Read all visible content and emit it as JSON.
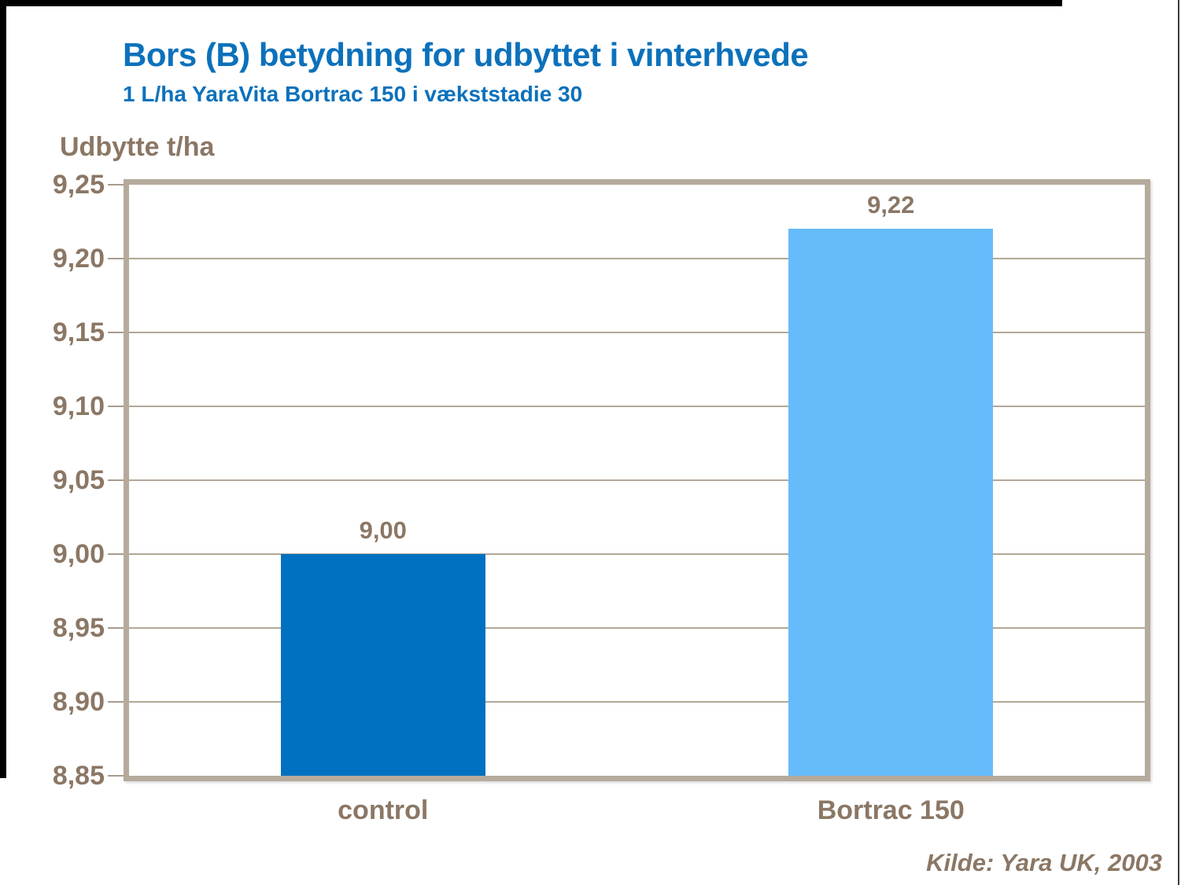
{
  "title": "Bors (B) betydning for udbyttet i vinterhvede",
  "subtitle": "1 L/ha YaraVita Bortrac 150 i vækststadie 30",
  "y_axis_title": "Udbytte t/ha",
  "source": "Kilde: Yara UK, 2003",
  "colors": {
    "title_blue": "#0c71bb",
    "text_brown": "#8b7765",
    "bar_control": "#0070c0",
    "bar_bortrac": "#66bbfa",
    "gridline": "#b3a797",
    "plot_frame": "#b5aa9c"
  },
  "chart_data": {
    "type": "bar",
    "title": "Bors (B) betydning for udbyttet i vinterhvede",
    "subtitle": "1 L/ha YaraVita Bortrac 150 i vækststadie 30",
    "xlabel": "",
    "ylabel": "Udbytte t/ha",
    "categories": [
      "control",
      "Bortrac 150"
    ],
    "values": [
      9.0,
      9.22
    ],
    "value_labels": [
      "9,00",
      "9,22"
    ],
    "bar_colors": [
      "#0070c0",
      "#66bbfa"
    ],
    "ylim": [
      8.85,
      9.25
    ],
    "ytick_step": 0.05,
    "yticks": [
      8.85,
      8.9,
      8.95,
      9.0,
      9.05,
      9.1,
      9.15,
      9.2,
      9.25
    ],
    "ytick_labels": [
      "8,85",
      "8,90",
      "8,95",
      "9,00",
      "9,05",
      "9,10",
      "9,15",
      "9,20",
      "9,25"
    ],
    "grid": true,
    "legend_position": "none",
    "decimal_separator": ",",
    "source": "Kilde: Yara UK, 2003"
  }
}
